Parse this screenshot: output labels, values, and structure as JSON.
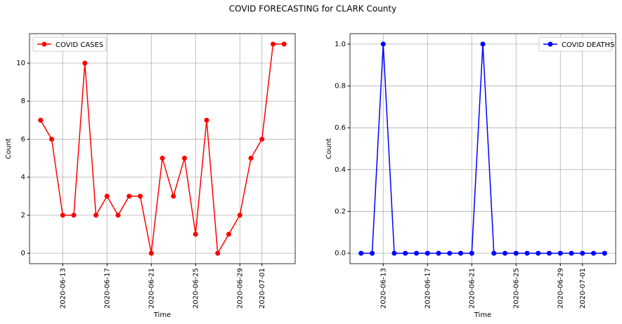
{
  "title": "COVID FORECASTING for CLARK County",
  "chart_data": [
    {
      "type": "line",
      "xlabel": "Time",
      "ylabel": "Count",
      "x": [
        "2020-06-11",
        "2020-06-12",
        "2020-06-13",
        "2020-06-14",
        "2020-06-15",
        "2020-06-16",
        "2020-06-17",
        "2020-06-18",
        "2020-06-19",
        "2020-06-20",
        "2020-06-21",
        "2020-06-22",
        "2020-06-23",
        "2020-06-24",
        "2020-06-25",
        "2020-06-26",
        "2020-06-27",
        "2020-06-28",
        "2020-06-29",
        "2020-06-30",
        "2020-07-01",
        "2020-07-02",
        "2020-07-03"
      ],
      "series": [
        {
          "name": "COVID CASES",
          "color": "#ff0000",
          "values": [
            7,
            6,
            2,
            2,
            10,
            2,
            3,
            2,
            3,
            3,
            0,
            5,
            3,
            5,
            1,
            7,
            0,
            1,
            2,
            5,
            6,
            11,
            11
          ]
        }
      ],
      "xlim": [
        "2020-06-10",
        "2020-07-04"
      ],
      "xticks": [
        "2020-06-13",
        "2020-06-17",
        "2020-06-21",
        "2020-06-25",
        "2020-06-29",
        "2020-07-01"
      ],
      "ylim": [
        -0.55,
        11.55
      ],
      "yticks": [
        0,
        2,
        4,
        6,
        8,
        10
      ],
      "grid": true,
      "legend": "upper left"
    },
    {
      "type": "line",
      "xlabel": "Time",
      "ylabel": "Count",
      "x": [
        "2020-06-11",
        "2020-06-12",
        "2020-06-13",
        "2020-06-14",
        "2020-06-15",
        "2020-06-16",
        "2020-06-17",
        "2020-06-18",
        "2020-06-19",
        "2020-06-20",
        "2020-06-21",
        "2020-06-22",
        "2020-06-23",
        "2020-06-24",
        "2020-06-25",
        "2020-06-26",
        "2020-06-27",
        "2020-06-28",
        "2020-06-29",
        "2020-06-30",
        "2020-07-01",
        "2020-07-02",
        "2020-07-03"
      ],
      "series": [
        {
          "name": "COVID DEATHS",
          "color": "#0000ff",
          "values": [
            0,
            0,
            1,
            0,
            0,
            0,
            0,
            0,
            0,
            0,
            0,
            1,
            0,
            0,
            0,
            0,
            0,
            0,
            0,
            0,
            0,
            0,
            0
          ]
        }
      ],
      "xlim": [
        "2020-06-10",
        "2020-07-04"
      ],
      "xticks": [
        "2020-06-13",
        "2020-06-17",
        "2020-06-21",
        "2020-06-25",
        "2020-06-29",
        "2020-07-01"
      ],
      "ylim": [
        -0.05,
        1.05
      ],
      "yticks": [
        {
          "value": 0,
          "label": "0.0"
        },
        {
          "value": 0.2,
          "label": "0.2"
        },
        {
          "value": 0.4,
          "label": "0.4"
        },
        {
          "value": 0.6,
          "label": "0.6"
        },
        {
          "value": 0.8,
          "label": "0.8"
        },
        {
          "value": 1,
          "label": "1.0"
        }
      ],
      "grid": true,
      "legend": "upper right"
    }
  ]
}
